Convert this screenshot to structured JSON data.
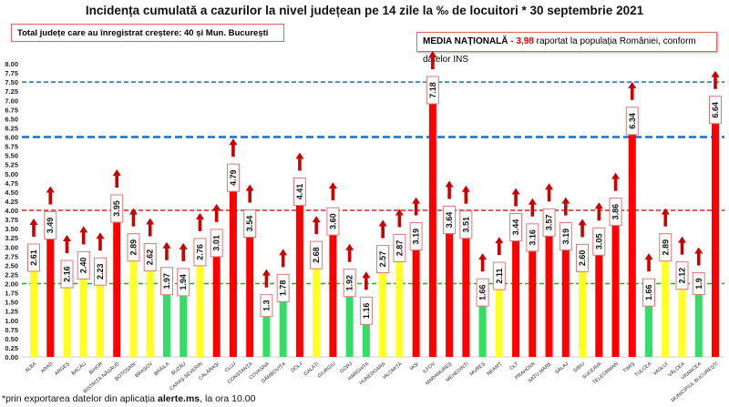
{
  "title": "Incidența cumulată a cazurilor la nivel județean pe 14 zile la ‰ de locuitori * 30 septembrie 2021",
  "info_box": "Total județe care au înregistrat creștere:  40 și Mun. București",
  "national": {
    "label": "MEDIA NAȚIONALĂ",
    "sep": " - ",
    "value": "3,98",
    "text": " raportat la populația României, conform datelor INS"
  },
  "footnote": {
    "prefix": "*prin exportarea  datelor din aplicația ",
    "bold": "alerte.ms",
    "suffix": ", la ora 10.00"
  },
  "colors": {
    "green": "#33dd66",
    "yellow": "#ffff22",
    "red": "#ff0000",
    "arrow": "#cc0000",
    "ref_green": "#22aa22",
    "ref_red": "#dd2222",
    "ref_blue": "#1a6fc9"
  },
  "chart_data": {
    "type": "bar",
    "ylim": [
      0,
      8
    ],
    "yticks_step": 0.25,
    "grid": false,
    "reference_lines": [
      {
        "value": 2,
        "color": "green"
      },
      {
        "value": 4,
        "color": "red"
      },
      {
        "value": 6,
        "color": "blue"
      },
      {
        "value": 7.5,
        "color": "blue"
      }
    ],
    "categories": [
      "ALBA",
      "ARAD",
      "ARGEȘ",
      "BACĂU",
      "BIHOR",
      "BISTRIȚA-NĂSĂUD",
      "BOTOȘANI",
      "BRAȘOV",
      "BRĂILA",
      "BUZĂU",
      "CARAȘ-SEVERIN",
      "CĂLĂRAȘI",
      "CLUJ",
      "CONSTANȚA",
      "COVASNA",
      "DÂMBOVIȚA",
      "DOLJ",
      "GALAȚI",
      "GIURGIU",
      "GORJ",
      "HARGHITA",
      "HUNEDOARA",
      "IALOMIȚA",
      "IAȘI",
      "ILFOV",
      "MARAMUREȘ",
      "MEHEDINȚI",
      "MUREȘ",
      "NEAMȚ",
      "OLT",
      "PRAHOVA",
      "SATU MARE",
      "SĂLAJ",
      "SIBIU",
      "SUCEAVA",
      "TELEORMAN",
      "TIMIȘ",
      "TULCEA",
      "VASLUI",
      "VÂLCEA",
      "VRANCEA",
      "MUNICIPIUL BUCUREȘTI"
    ],
    "values": [
      2.61,
      3.49,
      2.16,
      2.4,
      2.23,
      3.95,
      2.89,
      2.62,
      1.97,
      1.94,
      2.76,
      3.01,
      4.79,
      3.54,
      1.3,
      1.78,
      4.41,
      2.68,
      3.6,
      1.92,
      1.16,
      2.57,
      2.87,
      3.19,
      7.18,
      3.64,
      3.51,
      1.66,
      2.11,
      3.44,
      3.16,
      3.57,
      3.19,
      2.6,
      3.05,
      3.86,
      6.34,
      1.66,
      2.89,
      2.12,
      1.9,
      6.64
    ],
    "labels": [
      "2.61",
      "3.49",
      "2.16",
      "2.40",
      "2.23",
      "3.95",
      "2.89",
      "2.62",
      "1.97",
      "1.94",
      "2.76",
      "3.01",
      "4.79",
      "3.54",
      "1.3",
      "1.78",
      "4.41",
      "2.68",
      "3.60",
      "1.92",
      "1.16",
      "2.57",
      "2.87",
      "3.19",
      "7.18",
      "3.64",
      "3.51",
      "1.66",
      "2.11",
      "3.44",
      "3.16",
      "3.57",
      "3.19",
      "2.60",
      "3.05",
      "3.86",
      "6.34",
      "1.66",
      "2.89",
      "2.12",
      "1.9",
      "6.64"
    ],
    "trend": "increase"
  }
}
